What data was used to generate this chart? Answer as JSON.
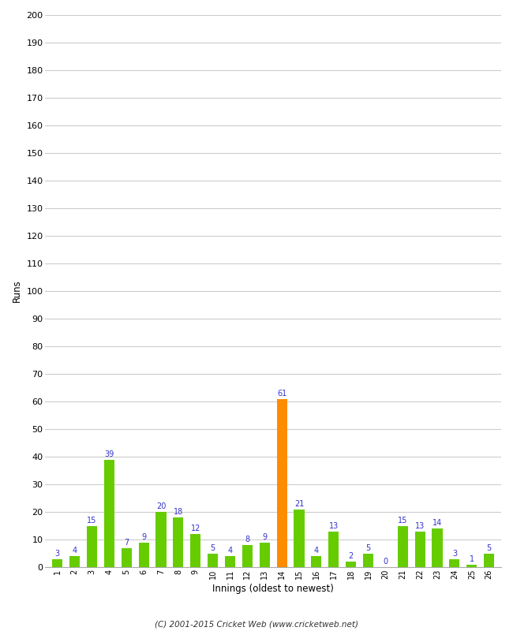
{
  "innings": [
    1,
    2,
    3,
    4,
    5,
    6,
    7,
    8,
    9,
    10,
    11,
    12,
    13,
    14,
    15,
    16,
    17,
    18,
    19,
    20,
    21,
    22,
    23,
    24,
    25,
    26
  ],
  "runs": [
    3,
    4,
    15,
    39,
    7,
    9,
    20,
    18,
    12,
    5,
    4,
    8,
    9,
    61,
    21,
    4,
    13,
    2,
    5,
    0,
    15,
    13,
    14,
    3,
    1,
    5
  ],
  "bar_colors": [
    "#66cc00",
    "#66cc00",
    "#66cc00",
    "#66cc00",
    "#66cc00",
    "#66cc00",
    "#66cc00",
    "#66cc00",
    "#66cc00",
    "#66cc00",
    "#66cc00",
    "#66cc00",
    "#66cc00",
    "#ff8c00",
    "#66cc00",
    "#66cc00",
    "#66cc00",
    "#66cc00",
    "#66cc00",
    "#66cc00",
    "#66cc00",
    "#66cc00",
    "#66cc00",
    "#66cc00",
    "#66cc00",
    "#66cc00"
  ],
  "xlabel": "Innings (oldest to newest)",
  "ylabel": "Runs",
  "ylim": [
    0,
    200
  ],
  "yticks": [
    0,
    10,
    20,
    30,
    40,
    50,
    60,
    70,
    80,
    90,
    100,
    110,
    120,
    130,
    140,
    150,
    160,
    170,
    180,
    190,
    200
  ],
  "label_color": "#3333cc",
  "footer": "(C) 2001-2015 Cricket Web (www.cricketweb.net)",
  "plot_bg_color": "#ffffff",
  "fig_bg_color": "#ffffff",
  "grid_color": "#cccccc"
}
